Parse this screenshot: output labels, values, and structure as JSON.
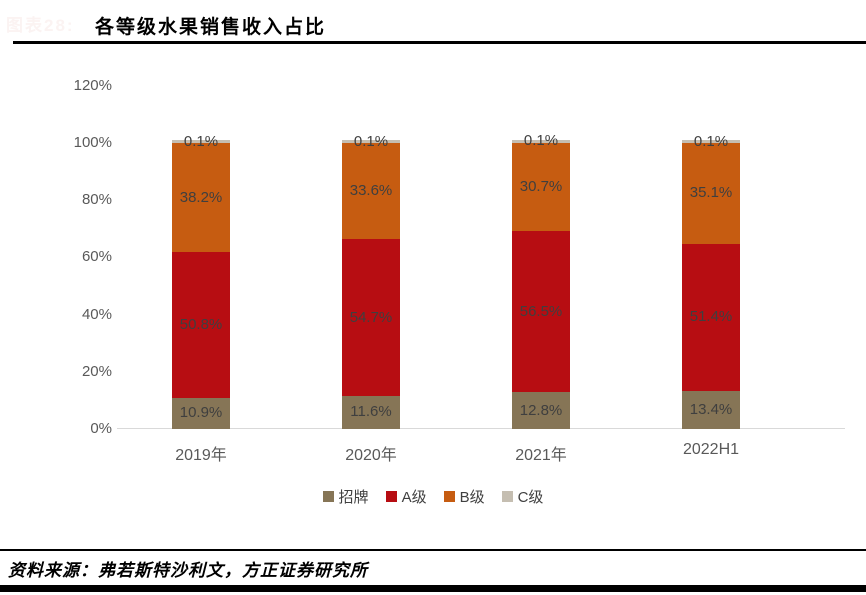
{
  "header": {
    "watermark": "图表28:",
    "title": "各等级水果销售收入占比"
  },
  "chart_data": {
    "type": "bar",
    "stacked": true,
    "title": "各等级水果销售收入占比",
    "categories": [
      "2019年",
      "2020年",
      "2021年",
      "2022H1"
    ],
    "series": [
      {
        "name": "招牌",
        "color": "#867556",
        "values": [
          10.9,
          11.6,
          12.8,
          13.4
        ]
      },
      {
        "name": "A级",
        "color": "#b70d12",
        "values": [
          50.8,
          54.7,
          56.5,
          51.4
        ]
      },
      {
        "name": "B级",
        "color": "#c65c11",
        "values": [
          38.2,
          33.6,
          30.7,
          35.1
        ]
      },
      {
        "name": "C级",
        "color": "#c5beb1",
        "values": [
          0.1,
          0.1,
          0.1,
          0.1
        ]
      }
    ],
    "y_ticks": [
      "0%",
      "20%",
      "40%",
      "60%",
      "80%",
      "100%",
      "120%"
    ],
    "ylim": [
      0,
      120
    ],
    "xlabel": "",
    "ylabel": "",
    "data_labels": true,
    "data_label_suffix": "%",
    "legend_position": "bottom",
    "grid": false
  },
  "footer": {
    "source": "资料来源：弗若斯特沙利文，方正证券研究所"
  }
}
